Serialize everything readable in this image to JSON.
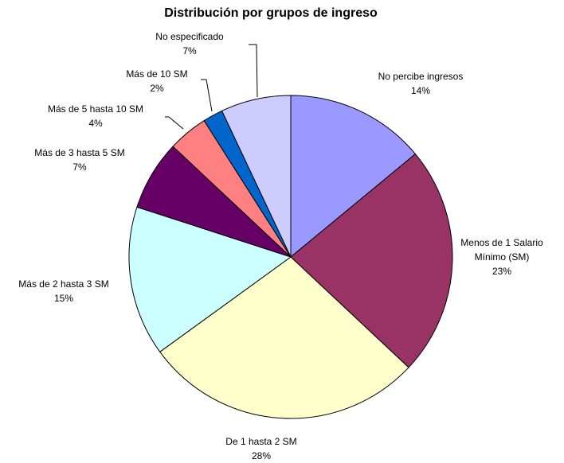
{
  "chart_data": {
    "type": "pie",
    "title": "Distribución por grupos de ingreso",
    "categories": [
      "No percibe ingresos",
      "Menos de 1 Salario Mínimo (SM)",
      "De 1 hasta 2 SM",
      "Más de 2 hasta 3 SM",
      "Más de 3 hasta 5 SM",
      "Más de 5 hasta 10 SM",
      "Más de 10 SM",
      "No especificado"
    ],
    "values": [
      14,
      23,
      28,
      15,
      7,
      4,
      2,
      7
    ],
    "value_labels": [
      "14%",
      "23%",
      "28%",
      "15%",
      "7%",
      "4%",
      "2%",
      "7%"
    ],
    "colors": [
      "#9999ff",
      "#993366",
      "#ffffcc",
      "#ccffff",
      "#660066",
      "#ff8080",
      "#0066cc",
      "#ccccff"
    ]
  }
}
